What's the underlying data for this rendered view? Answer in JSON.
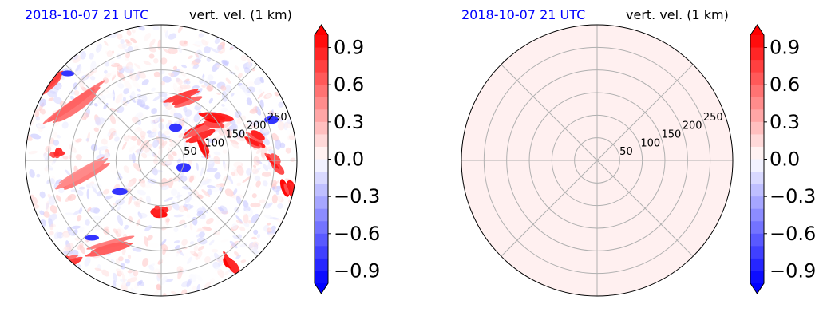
{
  "colors": {
    "positive_strong": "#ff0000",
    "positive_light": "#ffb0b0",
    "neutral": "#ffffff",
    "negative_light": "#b0b0ff",
    "negative_strong": "#0000ff",
    "title_time": "#0000ff",
    "grid": "#b0b0b0"
  },
  "chart_data": [
    {
      "type": "heatmap",
      "projection": "polar",
      "title_left": "2018-10-07 21 UTC",
      "title_right": "vert. vel. (1 km)",
      "radial_ticks": [
        "50",
        "100",
        "150",
        "200",
        "250"
      ],
      "angular_grid_deg": [
        0,
        45,
        90,
        135,
        180,
        225,
        270,
        315
      ],
      "field_description": "vertical velocity field with convective bands",
      "colorbar": {
        "ticks": [
          "0.9",
          "0.6",
          "0.3",
          "0.0",
          "−0.3",
          "−0.6",
          "−0.9"
        ],
        "range": [
          -1.0,
          1.0
        ],
        "levels": 20,
        "extend": "both"
      }
    },
    {
      "type": "heatmap",
      "projection": "polar",
      "title_left": "2018-10-07 21 UTC",
      "title_right": "vert. vel. (1 km)",
      "radial_ticks": [
        "50",
        "100",
        "150",
        "200",
        "250"
      ],
      "angular_grid_deg": [
        0,
        45,
        90,
        135,
        180,
        225,
        270,
        315
      ],
      "field_description": "uniform near-zero positive field",
      "uniform_value": 0.02,
      "colorbar": {
        "ticks": [
          "0.9",
          "0.6",
          "0.3",
          "0.0",
          "−0.3",
          "−0.6",
          "−0.9"
        ],
        "range": [
          -1.0,
          1.0
        ],
        "levels": 20,
        "extend": "both"
      }
    }
  ]
}
